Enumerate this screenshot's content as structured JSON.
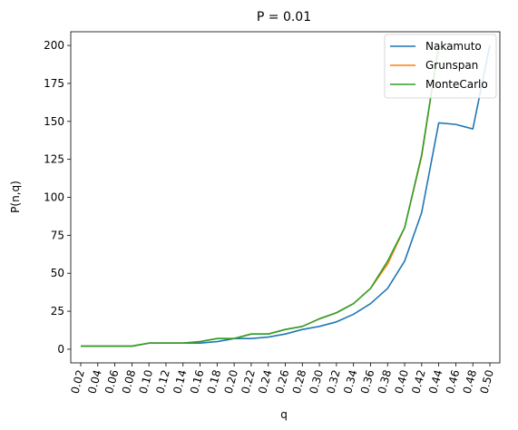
{
  "chart_data": {
    "type": "line",
    "title": "P = 0.01",
    "xlabel": "q",
    "ylabel": "P(n,q)",
    "x": [
      "0.02",
      "0.04",
      "0.06",
      "0.08",
      "0.10",
      "0.12",
      "0.14",
      "0.16",
      "0.18",
      "0.20",
      "0.22",
      "0.24",
      "0.26",
      "0.28",
      "0.30",
      "0.32",
      "0.34",
      "0.36",
      "0.38",
      "0.40",
      "0.42",
      "0.44",
      "0.46",
      "0.48",
      "0.50"
    ],
    "ylim": [
      -9,
      209
    ],
    "yticks": [
      0,
      25,
      50,
      75,
      100,
      125,
      150,
      175,
      200
    ],
    "grid": false,
    "legend_position": "top-right",
    "series": [
      {
        "name": "Nakamuto",
        "color": "#1f77b4",
        "values": [
          2,
          2,
          2,
          2,
          4,
          4,
          4,
          4,
          5,
          7,
          7,
          8,
          10,
          13,
          15,
          18,
          23,
          30,
          40,
          58,
          90,
          149,
          148,
          145,
          200
        ]
      },
      {
        "name": "Grunspan",
        "color": "#ff7f0e",
        "values": [
          2,
          2,
          2,
          2,
          4,
          4,
          4,
          5,
          7,
          7,
          10,
          10,
          13,
          15,
          20,
          24,
          30,
          40,
          56,
          80,
          127,
          200,
          null,
          null,
          null
        ]
      },
      {
        "name": "MonteCarlo",
        "color": "#2ca02c",
        "values": [
          2,
          2,
          2,
          2,
          4,
          4,
          4,
          5,
          7,
          7,
          10,
          10,
          13,
          15,
          20,
          24,
          30,
          40,
          58,
          80,
          128,
          200,
          null,
          null,
          null
        ]
      }
    ]
  }
}
